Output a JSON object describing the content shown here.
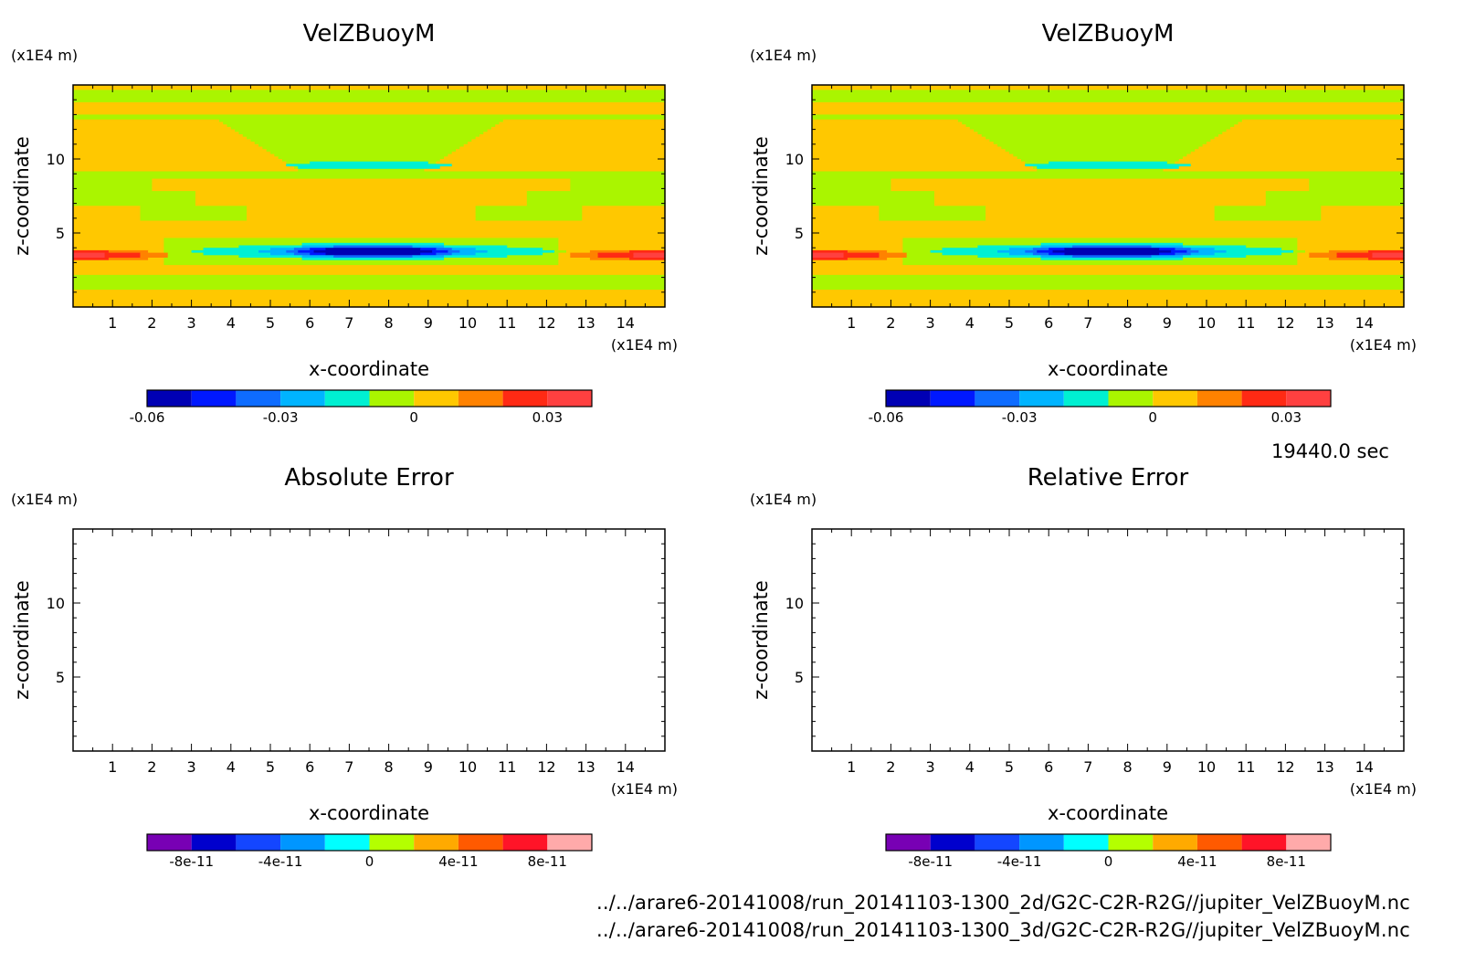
{
  "figure": {
    "time_label": "19440.0 sec",
    "files": [
      "../../arare6-20141008/run_20141103-1300_2d/G2C-C2R-R2G//jupiter_VelZBuoyM.nc",
      "../../arare6-20141008/run_20141103-1300_3d/G2C-C2R-R2G//jupiter_VelZBuoyM.nc"
    ]
  },
  "chart_data": [
    {
      "type": "heatmap",
      "title": "VelZBuoyM",
      "xlabel": "x-coordinate",
      "ylabel": "z-coordinate",
      "x_unit": "(x1E4 m)",
      "y_unit": "(x1E4 m)",
      "xlim": [
        0,
        15
      ],
      "ylim": [
        0,
        15
      ],
      "x_ticks": [
        1,
        2,
        3,
        4,
        5,
        6,
        7,
        8,
        9,
        10,
        11,
        12,
        13,
        14
      ],
      "y_ticks": [
        5,
        10
      ],
      "colorbar": {
        "levels": [
          -0.06,
          -0.05,
          -0.04,
          -0.03,
          -0.02,
          -0.01,
          0,
          0.01,
          0.02,
          0.03,
          0.04
        ],
        "colors": [
          "#0000b4",
          "#0018ff",
          "#0e6cff",
          "#00b4ff",
          "#00f0d2",
          "#aaf500",
          "#ffc800",
          "#ff8200",
          "#ff2a14",
          "#ff4040"
        ],
        "tick_values": [
          -0.06,
          -0.03,
          0,
          0.03
        ],
        "tick_labels": [
          "-0.06",
          "-0.03",
          "0",
          "0.03"
        ]
      },
      "features": "horizontal bands alternating ~0 to +0.01 (yellow-green / orange); negative core (~-0.06) near x=7.5, z=3.8; positive (~+0.03) at z~3.5 near x<2 and x>13"
    },
    {
      "type": "heatmap",
      "title": "VelZBuoyM",
      "xlabel": "x-coordinate",
      "ylabel": "z-coordinate",
      "x_unit": "(x1E4 m)",
      "y_unit": "(x1E4 m)",
      "xlim": [
        0,
        15
      ],
      "ylim": [
        0,
        15
      ],
      "x_ticks": [
        1,
        2,
        3,
        4,
        5,
        6,
        7,
        8,
        9,
        10,
        11,
        12,
        13,
        14
      ],
      "y_ticks": [
        5,
        10
      ],
      "colorbar": {
        "levels": [
          -0.06,
          -0.05,
          -0.04,
          -0.03,
          -0.02,
          -0.01,
          0,
          0.01,
          0.02,
          0.03,
          0.04
        ],
        "colors": [
          "#0000b4",
          "#0018ff",
          "#0e6cff",
          "#00b4ff",
          "#00f0d2",
          "#aaf500",
          "#ffc800",
          "#ff8200",
          "#ff2a14",
          "#ff4040"
        ],
        "tick_values": [
          -0.06,
          -0.03,
          0,
          0.03
        ],
        "tick_labels": [
          "-0.06",
          "-0.03",
          "0",
          "0.03"
        ]
      },
      "features": "identical to the 2d field"
    },
    {
      "type": "heatmap",
      "title": "Absolute Error",
      "xlabel": "x-coordinate",
      "ylabel": "z-coordinate",
      "x_unit": "(x1E4 m)",
      "y_unit": "(x1E4 m)",
      "xlim": [
        0,
        15
      ],
      "ylim": [
        0,
        15
      ],
      "x_ticks": [
        1,
        2,
        3,
        4,
        5,
        6,
        7,
        8,
        9,
        10,
        11,
        12,
        13,
        14
      ],
      "y_ticks": [
        5,
        10
      ],
      "empty": true,
      "colorbar": {
        "levels": [
          -1e-10,
          -8e-11,
          -6e-11,
          -4e-11,
          -2e-11,
          0,
          2e-11,
          4e-11,
          6e-11,
          8e-11,
          1e-10
        ],
        "colors": [
          "#7800b4",
          "#0000cd",
          "#1446ff",
          "#0096ff",
          "#00ffff",
          "#b4ff00",
          "#ffaa00",
          "#ff5a00",
          "#ff1428",
          "#ffaaaa"
        ],
        "tick_values": [
          -8e-11,
          -4e-11,
          0,
          4e-11,
          8e-11
        ],
        "tick_labels": [
          "-8e-11",
          "-4e-11",
          "0",
          "4e-11",
          "8e-11"
        ]
      }
    },
    {
      "type": "heatmap",
      "title": "Relative Error",
      "xlabel": "x-coordinate",
      "ylabel": "z-coordinate",
      "x_unit": "(x1E4 m)",
      "y_unit": "(x1E4 m)",
      "xlim": [
        0,
        15
      ],
      "ylim": [
        0,
        15
      ],
      "x_ticks": [
        1,
        2,
        3,
        4,
        5,
        6,
        7,
        8,
        9,
        10,
        11,
        12,
        13,
        14
      ],
      "y_ticks": [
        5,
        10
      ],
      "empty": true,
      "colorbar": {
        "levels": [
          -1e-10,
          -8e-11,
          -6e-11,
          -4e-11,
          -2e-11,
          0,
          2e-11,
          4e-11,
          6e-11,
          8e-11,
          1e-10
        ],
        "colors": [
          "#7800b4",
          "#0000cd",
          "#1446ff",
          "#0096ff",
          "#00ffff",
          "#b4ff00",
          "#ffaa00",
          "#ff5a00",
          "#ff1428",
          "#ffaaaa"
        ],
        "tick_values": [
          -8e-11,
          -4e-11,
          0,
          4e-11,
          8e-11
        ],
        "tick_labels": [
          "-8e-11",
          "-4e-11",
          "0",
          "4e-11",
          "8e-11"
        ]
      }
    }
  ]
}
